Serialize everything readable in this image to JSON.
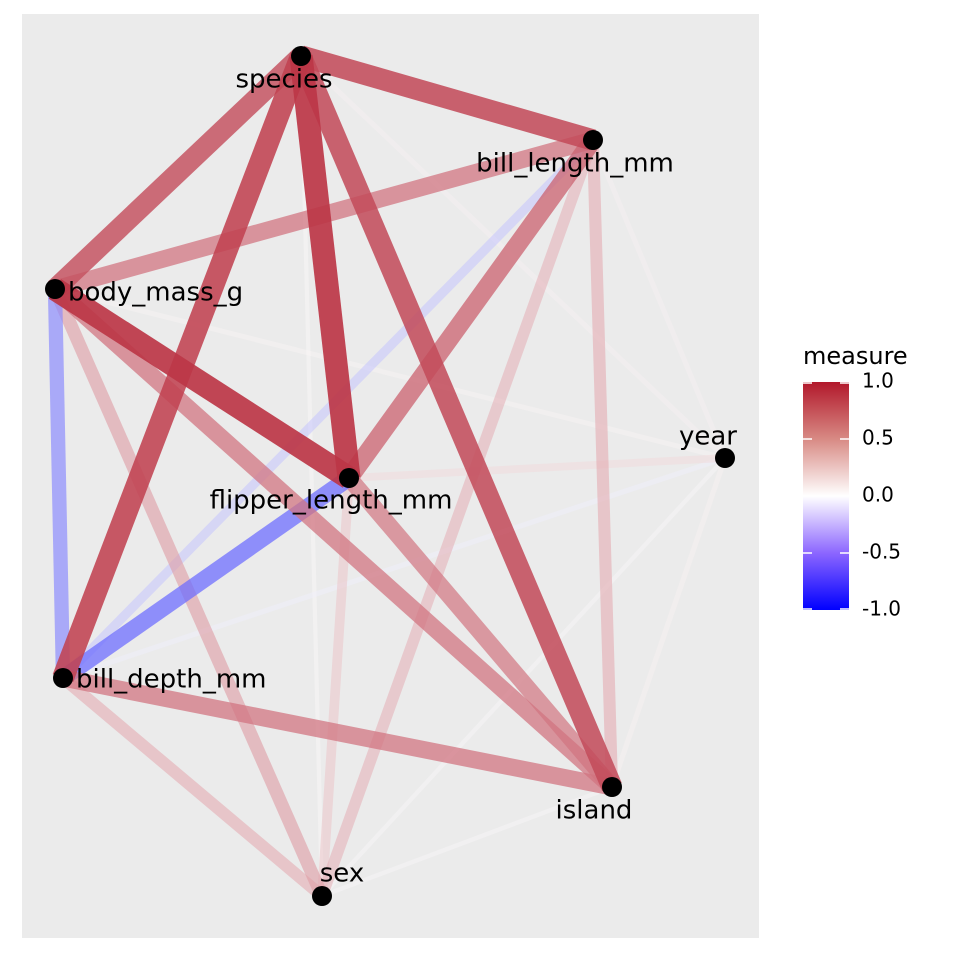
{
  "nodes": [
    {
      "id": "species",
      "label": "species"
    },
    {
      "id": "bill_length_mm",
      "label": "bill_length_mm"
    },
    {
      "id": "body_mass_g",
      "label": "body_mass_g"
    },
    {
      "id": "year",
      "label": "year"
    },
    {
      "id": "flipper_length_mm",
      "label": "flipper_length_mm"
    },
    {
      "id": "bill_depth_mm",
      "label": "bill_depth_mm"
    },
    {
      "id": "island",
      "label": "island"
    },
    {
      "id": "sex",
      "label": "sex"
    }
  ],
  "edges": [
    {
      "source": "species",
      "target": "flipper_length_mm",
      "measure": 0.87
    },
    {
      "source": "flipper_length_mm",
      "target": "body_mass_g",
      "measure": 0.87
    },
    {
      "source": "species",
      "target": "bill_depth_mm",
      "measure": 0.82
    },
    {
      "source": "species",
      "target": "body_mass_g",
      "measure": 0.75
    },
    {
      "source": "species",
      "target": "bill_length_mm",
      "measure": 0.79
    },
    {
      "source": "species",
      "target": "island",
      "measure": 0.78
    },
    {
      "source": "bill_length_mm",
      "target": "flipper_length_mm",
      "measure": 0.66
    },
    {
      "source": "body_mass_g",
      "target": "bill_length_mm",
      "measure": 0.6
    },
    {
      "source": "bill_depth_mm",
      "target": "island",
      "measure": 0.6
    },
    {
      "source": "body_mass_g",
      "target": "island",
      "measure": 0.6
    },
    {
      "source": "flipper_length_mm",
      "target": "island",
      "measure": 0.58
    },
    {
      "source": "flipper_length_mm",
      "target": "bill_depth_mm",
      "measure": -0.58
    },
    {
      "source": "body_mass_g",
      "target": "bill_depth_mm",
      "measure": -0.47
    },
    {
      "source": "bill_length_mm",
      "target": "island",
      "measure": 0.37
    },
    {
      "source": "body_mass_g",
      "target": "sex",
      "measure": 0.42
    },
    {
      "source": "bill_depth_mm",
      "target": "sex",
      "measure": 0.37
    },
    {
      "source": "bill_length_mm",
      "target": "sex",
      "measure": 0.34
    },
    {
      "source": "flipper_length_mm",
      "target": "sex",
      "measure": 0.26
    },
    {
      "source": "bill_length_mm",
      "target": "bill_depth_mm",
      "measure": -0.24
    },
    {
      "source": "flipper_length_mm",
      "target": "year",
      "measure": 0.17
    },
    {
      "source": "island",
      "target": "year",
      "measure": 0.06
    },
    {
      "source": "species",
      "target": "year",
      "measure": 0.05
    },
    {
      "source": "bill_length_mm",
      "target": "year",
      "measure": 0.05
    },
    {
      "source": "body_mass_g",
      "target": "year",
      "measure": 0.04
    },
    {
      "source": "bill_depth_mm",
      "target": "year",
      "measure": -0.06
    },
    {
      "source": "sex",
      "target": "year",
      "measure": 0.02
    },
    {
      "source": "island",
      "target": "sex",
      "measure": 0.02
    },
    {
      "source": "species",
      "target": "sex",
      "measure": 0.01
    }
  ],
  "legend": {
    "title": "measure",
    "ticks": [
      1.0,
      0.5,
      0.0,
      -0.5,
      -1.0
    ],
    "tick_labels": [
      "1.0",
      "0.5",
      "0.0",
      "-0.5",
      "-1.0"
    ]
  },
  "colors": {
    "panel_background": "#ebebeb",
    "high": "#b2182b",
    "mid": "#ffffff",
    "low": "#0000ff",
    "node": "#000000"
  }
}
